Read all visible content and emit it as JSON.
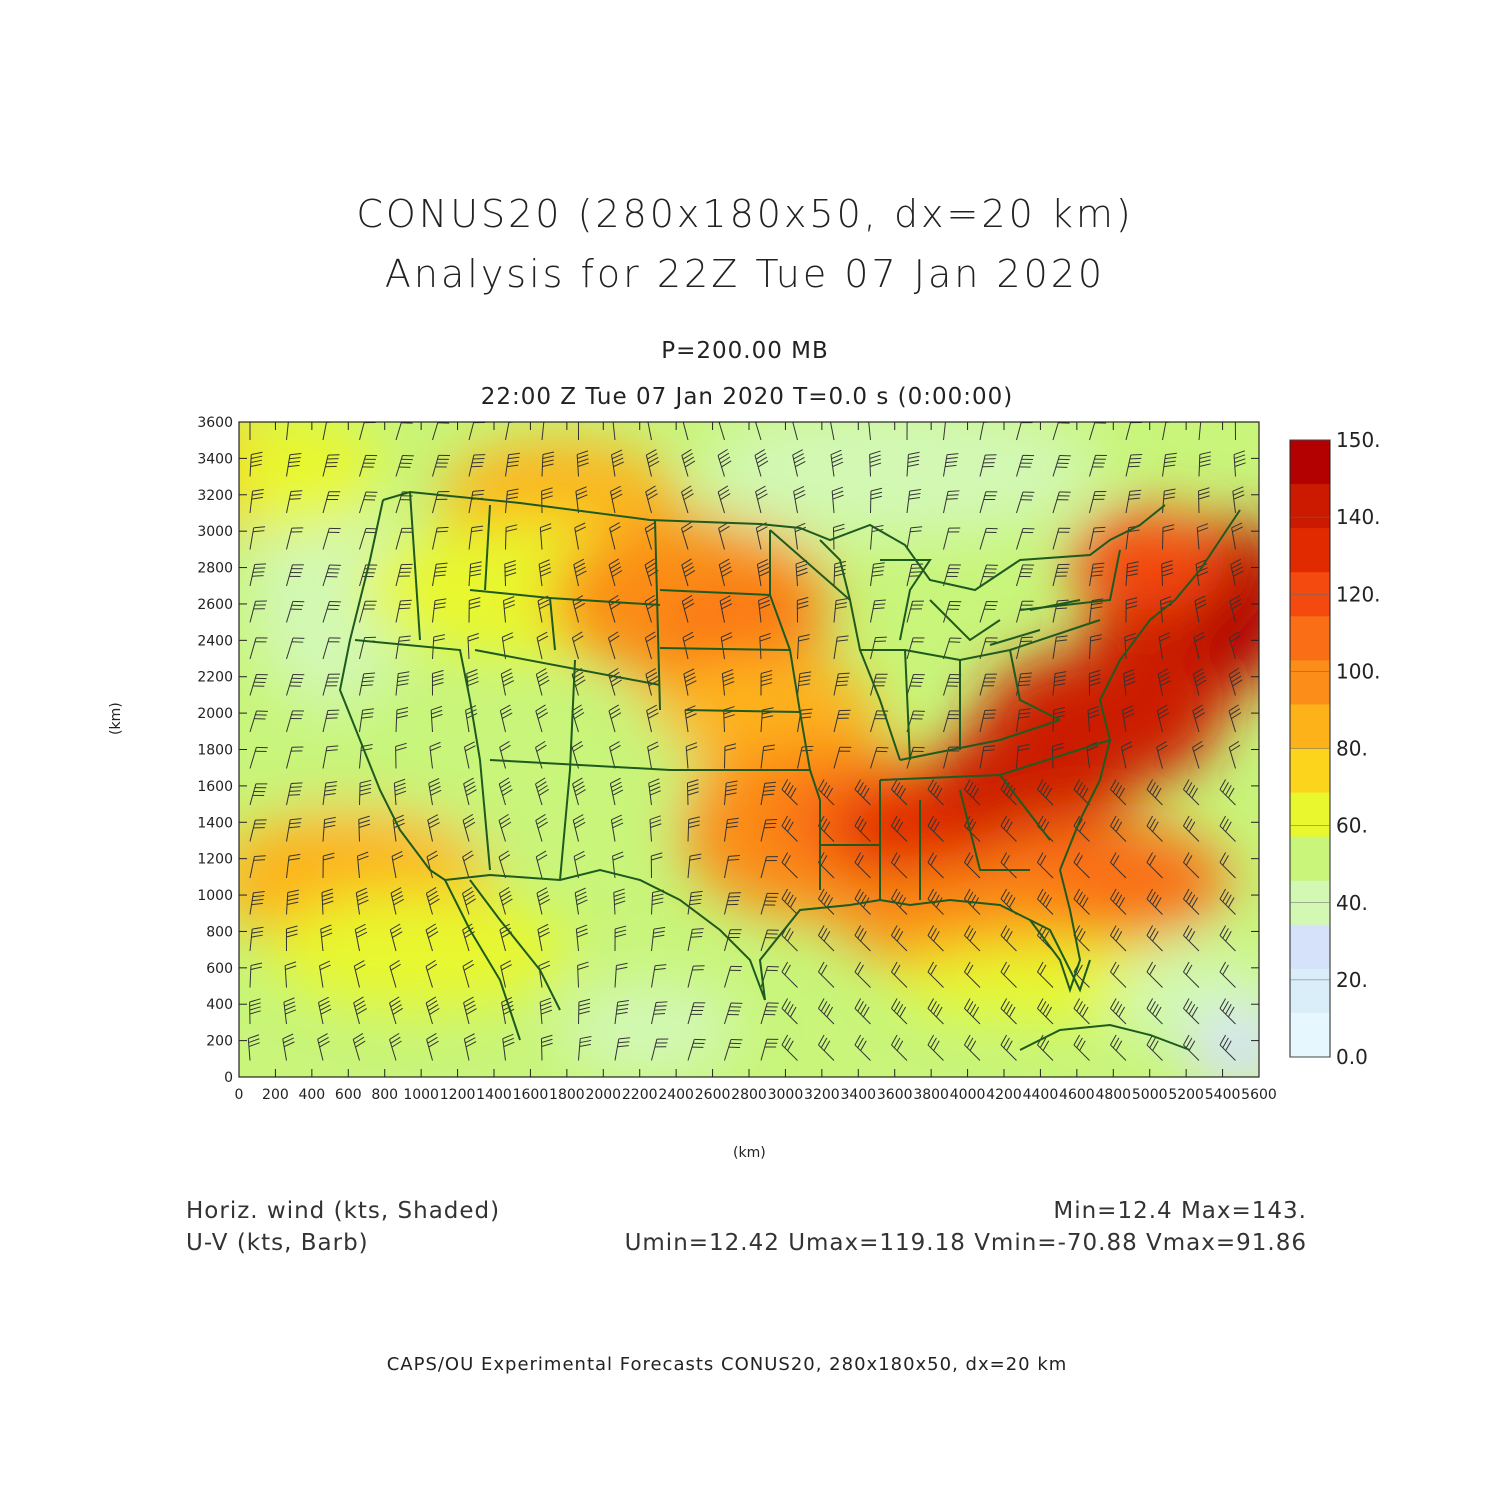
{
  "titles": {
    "line1": "CONUS20 (280x180x50, dx=20 km)",
    "line2": "Analysis for 22Z Tue 07 Jan 2020",
    "level": "P=200.00 MB",
    "valid_time": "22:00 Z Tue 07 Jan 2020   T=0.0 s (0:00:00)"
  },
  "axes": {
    "x_label": "(km)",
    "y_label": "(km)",
    "x_range": [
      0,
      5600
    ],
    "y_range": [
      0,
      3600
    ],
    "x_ticks": [
      "0",
      "200",
      "400",
      "600",
      "800",
      "1000",
      "1200",
      "1400",
      "1600",
      "1800",
      "2000",
      "2200",
      "2400",
      "2600",
      "2800",
      "3000",
      "3200",
      "3400",
      "3600",
      "3800",
      "4000",
      "4200",
      "4400",
      "4600",
      "4800",
      "5000",
      "5200",
      "5400",
      "5600"
    ],
    "y_ticks": [
      "0",
      "200",
      "400",
      "600",
      "800",
      "1000",
      "1200",
      "1400",
      "1600",
      "1800",
      "2000",
      "2200",
      "2400",
      "2600",
      "2800",
      "3000",
      "3200",
      "3400",
      "3600"
    ]
  },
  "colorbar": {
    "labels": [
      "150.",
      "140.",
      "120.",
      "100.",
      "80.",
      "60.",
      "40.",
      "20.",
      "0.0"
    ],
    "colors": [
      "#b30000",
      "#cc1a00",
      "#e22a00",
      "#f44a0f",
      "#fa6f16",
      "#fb8d18",
      "#fdb21a",
      "#fdd41c",
      "#e8f72e",
      "#c8f57a",
      "#d2f8b4",
      "#d6e2fa",
      "#daeefa",
      "#e6f8fd"
    ]
  },
  "footer": {
    "left1": "Horiz. wind (kts, Shaded)",
    "left2": "U-V (kts, Barb)",
    "right1": "Min=12.4  Max=143.",
    "right2": "Umin=12.42  Umax=119.18  Vmin=-70.88  Vmax=91.86",
    "credit": "CAPS/OU Experimental Forecasts  CONUS20, 280x180x50, dx=20 km"
  },
  "map": {
    "boundary_color": "#1f5a1f",
    "barb_color": "#333333"
  }
}
